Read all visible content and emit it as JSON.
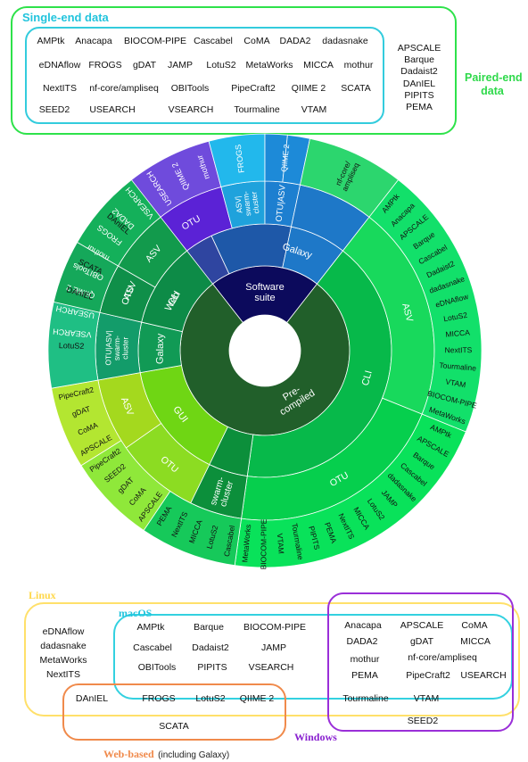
{
  "top": {
    "single_end_label": "Single-end data",
    "paired_end_label_1": "Paired-end",
    "paired_end_label_2": "data",
    "single_end_rows": [
      [
        "AMPtk",
        "Anacapa",
        "BIOCOM-PIPE",
        "Cascabel",
        "CoMA",
        "DADA2",
        "dadasnake"
      ],
      [
        "eDNAflow",
        "FROGS",
        "gDAT",
        "JAMP",
        "LotuS2",
        "MetaWorks",
        "MICCA",
        "mothur"
      ],
      [
        "NextITS",
        "nf-core/ampliseq",
        "OBITools",
        "PipeCraft2",
        "QIIME 2",
        "SCATA"
      ],
      [
        "SEED2",
        "USEARCH",
        "VSEARCH",
        "Tourmaline",
        "VTAM"
      ]
    ],
    "paired_only": [
      "APSCALE",
      "Barque",
      "Dadaist2",
      "DAnIEL",
      "PIPITS",
      "PEMA"
    ]
  },
  "sunburst": {
    "center": [
      "Software",
      "suite"
    ],
    "precompiled": [
      "Pre-",
      "compiled"
    ],
    "cli": "CLI",
    "gui": "GUI",
    "swarm": [
      "swarm-",
      "cluster"
    ],
    "asv": "ASV",
    "otu": "OTU",
    "web": "Web",
    "galaxy": "Galaxy",
    "otu_asv_swarm": [
      "OTU|ASV|",
      "swarm-",
      "cluster"
    ],
    "asv_swarm": [
      "ASV|",
      "swarm-",
      "cluster"
    ],
    "otu_asv": "OTU|ASV",
    "tools_sw_cli_asv": [
      "VSEARCH",
      "USEARCH",
      "QIIME 2",
      "OBITools",
      "mothur",
      "FROGS",
      "DADA2"
    ],
    "tools_sw_cli_otu": [
      "VSEARCH",
      "USEARCH",
      "QIIME 2",
      "mothur"
    ],
    "tools_sw_galaxy": [
      "FROGS"
    ],
    "tools_sw_otuasv": [
      "QIIME 2"
    ],
    "tools_nfcore": [
      "nf-core/",
      "ampliseq"
    ],
    "tools_web_asv": [
      "DAnIEL"
    ],
    "tools_web_otu": [
      "DAnIEL",
      "SCATA"
    ],
    "tools_galaxy_l": [
      "LotuS2"
    ],
    "tools_gui_asv": [
      "APSCALE",
      "CoMA",
      "gDAT",
      "PipeCraft2"
    ],
    "tools_gui_otu": [
      "APSCALE",
      "CoMA",
      "gDAT",
      "SEED2",
      "PipeCraft2"
    ],
    "tools_pre_swarm": [
      "Cascabel",
      "LotuS2",
      "MICCA",
      "NextITS",
      "PEMA"
    ],
    "tools_pre_otu": [
      "AMPtk",
      "APSCALE",
      "Barque",
      "Cascabel",
      "dadasnake",
      "JAMP",
      "LotuS2",
      "MICCA",
      "NextITS",
      "PEMA",
      "PIPITS",
      "Tourmaline",
      "VTAM",
      "BIOCOM-PIPE",
      "MetaWorks"
    ],
    "tools_pre_asv": [
      "AMPtk",
      "Anacapa",
      "APSCALE",
      "Barque",
      "Cascabel",
      "Dadaist2",
      "dadasnake",
      "eDNAflow",
      "LotuS2",
      "MICCA",
      "NextITS",
      "Tourmaline",
      "VTAM",
      "BIOCOM-PIPE",
      "MetaWorks"
    ]
  },
  "bottom": {
    "linux_label": "Linux",
    "macos_label": "macOS",
    "windows_label": "Windows",
    "web_label": "Web-based",
    "web_label_note": "(including Galaxy)",
    "linux_only": [
      "eDNAflow",
      "dadasnake",
      "MetaWorks",
      "NextITS"
    ],
    "linux_macos": [
      "AMPtk",
      "Barque",
      "BIOCOM-PIPE",
      "Cascabel",
      "Dadaist2",
      "JAMP",
      "OBITools",
      "PIPITS",
      "VSEARCH"
    ],
    "all_three": [
      "Anacapa",
      "APSCALE",
      "CoMA",
      "DADA2",
      "gDAT",
      "MICCA",
      "mothur",
      "nf-core/ampliseq",
      "PEMA",
      "PipeCraft2",
      "USEARCH",
      "Tourmaline",
      "VTAM"
    ],
    "linux_web": [
      "DAnIEL"
    ],
    "linux_macos_web": [
      "FROGS",
      "LotuS2",
      "QIIME 2"
    ],
    "linux_win_web": [
      "SCATA"
    ],
    "linux_win": [
      "SEED2"
    ]
  },
  "colors": {
    "single_box": "#33ccdd",
    "paired_box": "#2ee24a",
    "linux": "#ffe06a",
    "macos": "#33d1e0",
    "windows": "#9a2fd8",
    "web": "#f08a4b"
  }
}
